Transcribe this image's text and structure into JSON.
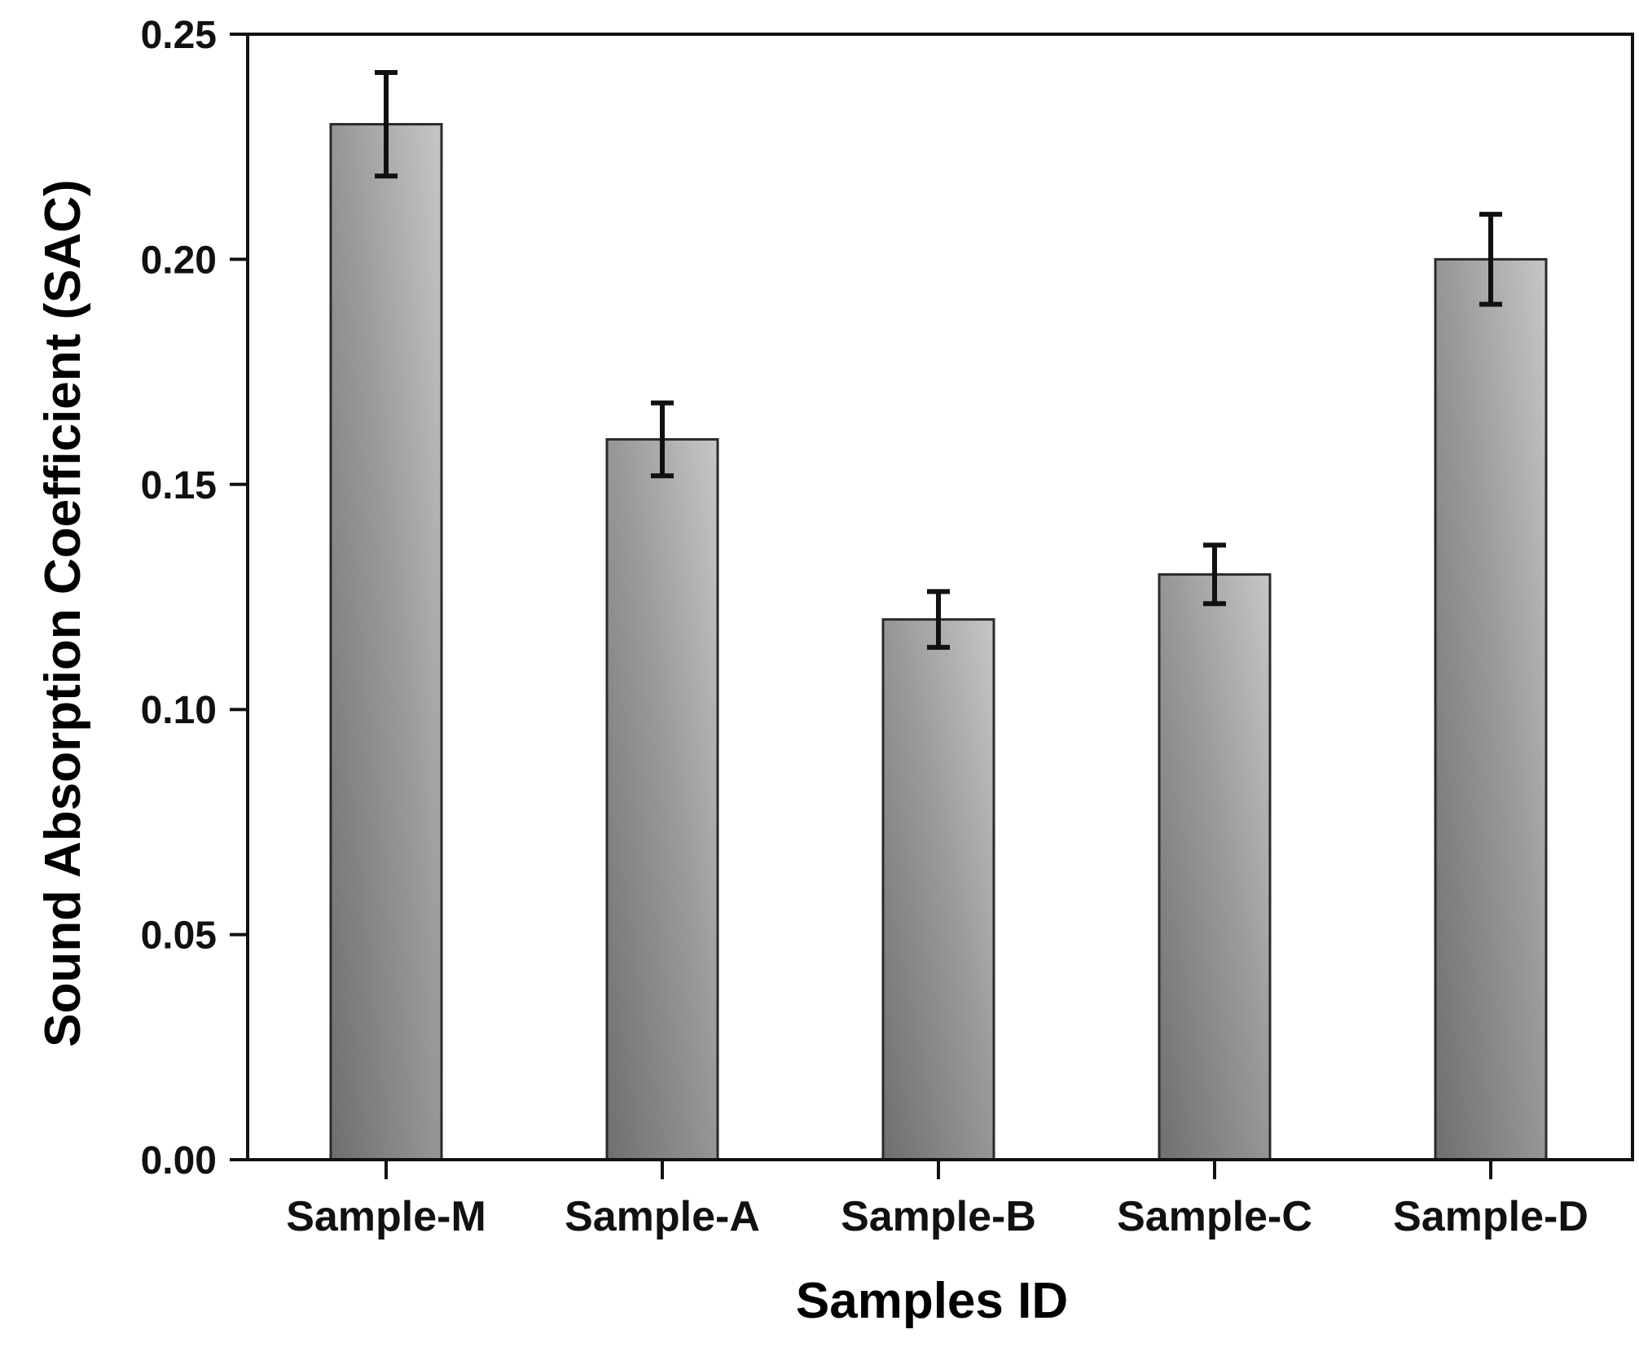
{
  "chart_data": {
    "type": "bar",
    "title": "",
    "xlabel": "Samples ID",
    "ylabel": "Sound Absorption Coefficient (SAC)",
    "categories": [
      "Sample-M",
      "Sample-A",
      "Sample-B",
      "Sample-C",
      "Sample-D"
    ],
    "values": [
      0.23,
      0.16,
      0.12,
      0.13,
      0.2
    ],
    "errors": [
      0.0115,
      0.0081,
      0.0062,
      0.0065,
      0.01
    ],
    "ylim": [
      0.0,
      0.25
    ],
    "yticks": [
      "0.00",
      "0.05",
      "0.10",
      "0.15",
      "0.20",
      "0.25"
    ],
    "grid": false,
    "legend": "none",
    "colors": {
      "bar_dark": "#7a7a7a",
      "bar_light": "#c2c2c2",
      "bar_edge": "#2a2a2a",
      "axis": "#111111",
      "error_bar": "#111111"
    }
  }
}
